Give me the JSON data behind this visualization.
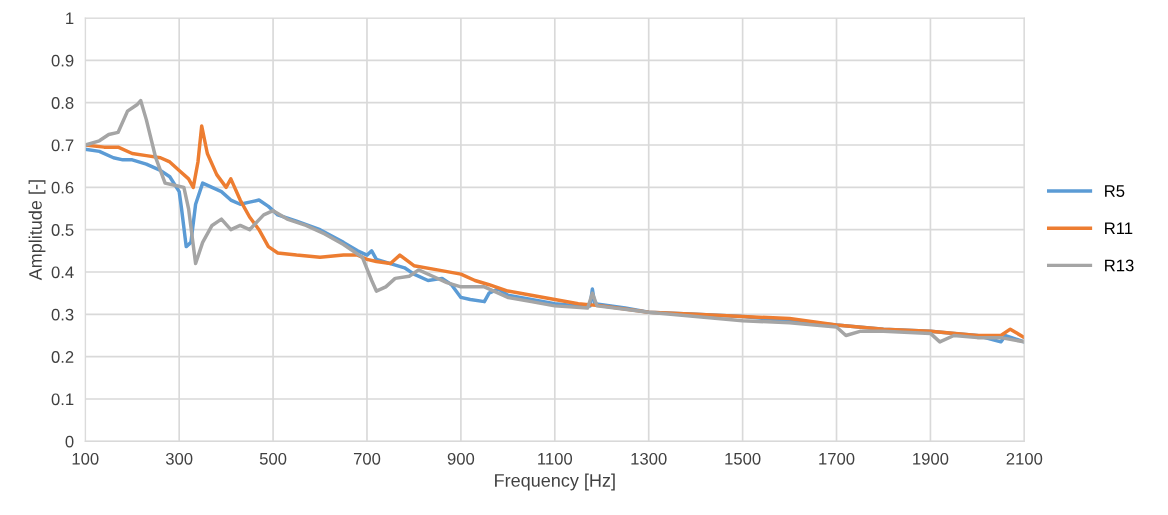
{
  "chart_data": {
    "type": "line",
    "xlabel": "Frequency [Hz]",
    "ylabel": "Amplitude [-]",
    "xlim": [
      100,
      2100
    ],
    "xticks": [
      100,
      300,
      500,
      700,
      900,
      1100,
      1300,
      1500,
      1700,
      1900,
      2100
    ],
    "ylim": [
      0,
      1
    ],
    "yticks": [
      0,
      0.1,
      0.2,
      0.3,
      0.4,
      0.5,
      0.6,
      0.7,
      0.8,
      0.9,
      1
    ],
    "grid": true,
    "legend": "right",
    "marker": "none",
    "line_style": "solid",
    "series": [
      {
        "name": "R5",
        "color": "#5b9bd5",
        "x": [
          100,
          130,
          160,
          180,
          200,
          230,
          260,
          280,
          300,
          305,
          315,
          325,
          335,
          350,
          370,
          390,
          410,
          430,
          450,
          470,
          490,
          510,
          550,
          600,
          650,
          680,
          700,
          710,
          720,
          750,
          780,
          800,
          830,
          860,
          880,
          900,
          920,
          950,
          960,
          980,
          1000,
          1050,
          1100,
          1150,
          1175,
          1180,
          1185,
          1250,
          1300,
          1400,
          1500,
          1600,
          1700,
          1800,
          1900,
          1950,
          2000,
          2050,
          2060,
          2100
        ],
        "values": [
          0.69,
          0.685,
          0.67,
          0.665,
          0.665,
          0.655,
          0.64,
          0.625,
          0.59,
          0.55,
          0.46,
          0.47,
          0.56,
          0.61,
          0.6,
          0.59,
          0.57,
          0.56,
          0.565,
          0.57,
          0.555,
          0.535,
          0.52,
          0.5,
          0.47,
          0.45,
          0.44,
          0.45,
          0.43,
          0.42,
          0.41,
          0.395,
          0.38,
          0.385,
          0.37,
          0.34,
          0.335,
          0.33,
          0.35,
          0.36,
          0.345,
          0.335,
          0.325,
          0.32,
          0.32,
          0.36,
          0.325,
          0.315,
          0.305,
          0.3,
          0.295,
          0.285,
          0.275,
          0.265,
          0.26,
          0.255,
          0.25,
          0.235,
          0.25,
          0.235
        ]
      },
      {
        "name": "R11",
        "color": "#ed7d31",
        "x": [
          100,
          140,
          170,
          200,
          230,
          260,
          280,
          300,
          320,
          330,
          340,
          348,
          360,
          380,
          400,
          410,
          430,
          450,
          470,
          490,
          510,
          550,
          600,
          650,
          680,
          700,
          720,
          750,
          770,
          800,
          850,
          900,
          930,
          960,
          1000,
          1050,
          1100,
          1150,
          1200,
          1300,
          1400,
          1500,
          1600,
          1700,
          1800,
          1900,
          2000,
          2050,
          2070,
          2100
        ],
        "values": [
          0.7,
          0.695,
          0.695,
          0.68,
          0.675,
          0.67,
          0.66,
          0.64,
          0.62,
          0.6,
          0.66,
          0.745,
          0.68,
          0.63,
          0.6,
          0.62,
          0.57,
          0.53,
          0.5,
          0.46,
          0.445,
          0.44,
          0.435,
          0.44,
          0.44,
          0.43,
          0.425,
          0.42,
          0.44,
          0.415,
          0.405,
          0.395,
          0.38,
          0.37,
          0.355,
          0.345,
          0.335,
          0.325,
          0.32,
          0.305,
          0.3,
          0.295,
          0.29,
          0.275,
          0.265,
          0.26,
          0.25,
          0.25,
          0.265,
          0.245
        ]
      },
      {
        "name": "R13",
        "color": "#a5a5a5",
        "x": [
          100,
          130,
          150,
          170,
          190,
          210,
          218,
          230,
          250,
          270,
          290,
          310,
          320,
          335,
          350,
          370,
          390,
          410,
          430,
          450,
          480,
          500,
          530,
          570,
          610,
          650,
          690,
          710,
          720,
          740,
          760,
          790,
          810,
          840,
          870,
          900,
          950,
          1000,
          1050,
          1100,
          1170,
          1180,
          1190,
          1300,
          1400,
          1500,
          1600,
          1700,
          1720,
          1750,
          1800,
          1900,
          1920,
          1950,
          2000,
          2050,
          2100
        ],
        "values": [
          0.7,
          0.71,
          0.725,
          0.73,
          0.78,
          0.795,
          0.805,
          0.76,
          0.67,
          0.61,
          0.605,
          0.6,
          0.55,
          0.42,
          0.47,
          0.51,
          0.525,
          0.5,
          0.51,
          0.5,
          0.535,
          0.545,
          0.525,
          0.51,
          0.49,
          0.465,
          0.435,
          0.38,
          0.355,
          0.365,
          0.385,
          0.39,
          0.405,
          0.39,
          0.375,
          0.365,
          0.365,
          0.34,
          0.33,
          0.32,
          0.315,
          0.35,
          0.32,
          0.305,
          0.295,
          0.285,
          0.28,
          0.27,
          0.25,
          0.26,
          0.26,
          0.255,
          0.235,
          0.25,
          0.245,
          0.245,
          0.235
        ]
      }
    ]
  }
}
